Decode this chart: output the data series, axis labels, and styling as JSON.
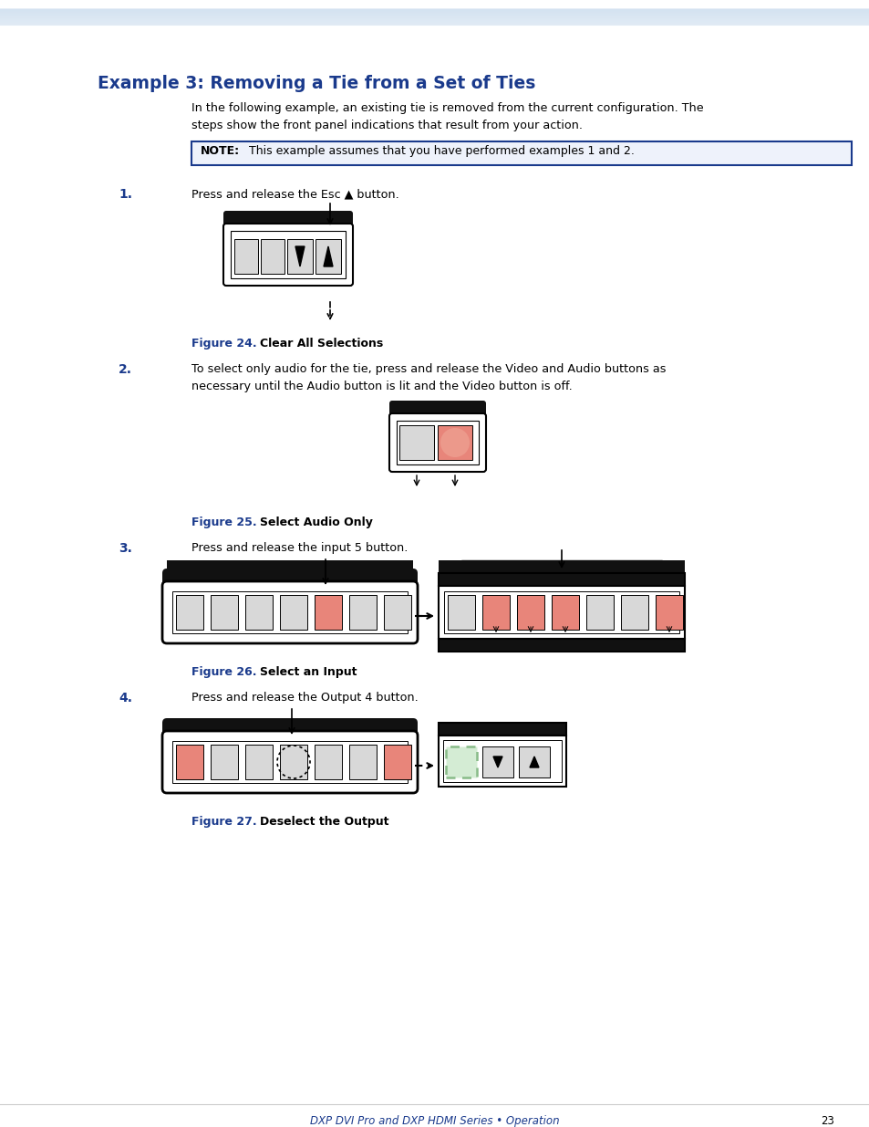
{
  "title": "Example 3: Removing a Tie from a Set of Ties",
  "title_color": "#1a3a8c",
  "bg_color": "#ffffff",
  "header_line_color": "#b8d0e8",
  "body_text_intro": "In the following example, an existing tie is removed from the current configuration. The\nsteps show the front panel indications that result from your action.",
  "note_text": "NOTE:   This example assumes that you have performed examples 1 and 2.",
  "note_border_color": "#1a3a8c",
  "note_bg_color": "#eef2fb",
  "step1_num": "1.",
  "step1_text": "Press and release the Esc ▲ button.",
  "fig24_label": "Figure 24.",
  "fig24_title": "Clear All Selections",
  "step2_num": "2.",
  "step2_text": "To select only audio for the tie, press and release the Video and Audio buttons as\nnecessary until the Audio button is lit and the Video button is off.",
  "fig25_label": "Figure 25.",
  "fig25_title": "Select Audio Only",
  "step3_num": "3.",
  "step3_text": "Press and release the input 5 button.",
  "fig26_label": "Figure 26.",
  "fig26_title": "Select an Input",
  "step4_num": "4.",
  "step4_text": "Press and release the Output 4 button.",
  "fig27_label": "Figure 27.",
  "fig27_title": "Deselect the Output",
  "footer_text": "DXP DVI Pro and DXP HDMI Series • Operation",
  "footer_page": "23",
  "salmon_color": "#e8857a",
  "light_gray": "#d8d8d8",
  "dark_bg": "#111111",
  "white": "#ffffff",
  "black": "#000000",
  "green_outline": "#88bb88",
  "step_color": "#1a3a8c"
}
